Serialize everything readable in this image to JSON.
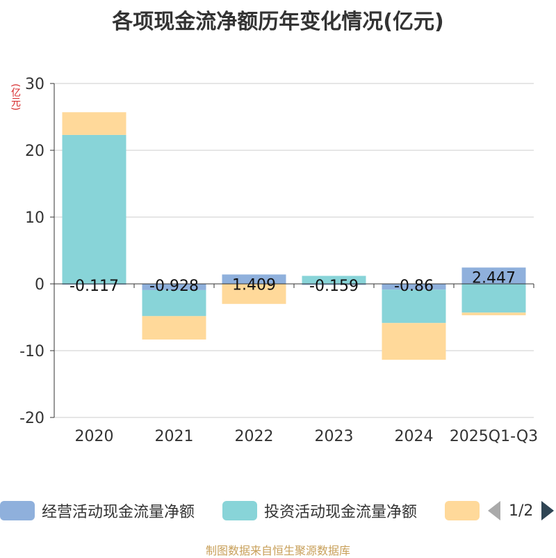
{
  "chart_data": {
    "type": "bar",
    "stacked": true,
    "title": "各项现金流净额历年变化情况(亿元)",
    "ylabel": "(亿元)",
    "ylim": [
      -20,
      30
    ],
    "yticks": [
      30,
      20,
      10,
      0,
      -10,
      -20
    ],
    "categories": [
      "2020",
      "2021",
      "2022",
      "2023",
      "2024",
      "2025Q1-Q3"
    ],
    "series": [
      {
        "name": "经营活动现金流量净额",
        "color": "#8fb0dc",
        "values": [
          -0.117,
          -0.928,
          1.409,
          -0.159,
          -0.86,
          2.447
        ],
        "labels": [
          "-0.117",
          "-0.928",
          "1.409",
          "-0.159",
          "-0.86",
          "2.447"
        ]
      },
      {
        "name": "投资活动现金流量净额",
        "color": "#88d4d8",
        "values": [
          22.3,
          -3.9,
          0,
          1.2,
          -5.0,
          -4.3
        ]
      },
      {
        "name": "",
        "color": "#ffd99a",
        "values": [
          3.4,
          -3.5,
          -3.0,
          0,
          -5.5,
          -0.4
        ]
      }
    ]
  },
  "legend": {
    "page": "1/2"
  },
  "footer": {
    "source": "制图数据来自恒生聚源数据库"
  }
}
